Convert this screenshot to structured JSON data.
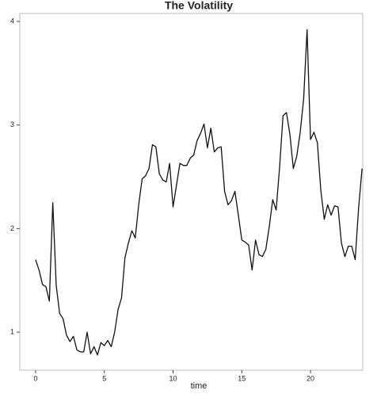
{
  "chart_data": {
    "type": "line",
    "title": "The Volatility",
    "xlabel": "time",
    "x": [
      0,
      0.25,
      0.5,
      0.75,
      1,
      1.25,
      1.5,
      1.75,
      2,
      2.25,
      2.5,
      2.75,
      3,
      3.25,
      3.5,
      3.75,
      4,
      4.25,
      4.5,
      4.75,
      5,
      5.25,
      5.5,
      5.75,
      6,
      6.25,
      6.5,
      6.75,
      7,
      7.25,
      7.5,
      7.75,
      8,
      8.25,
      8.5,
      8.75,
      9,
      9.25,
      9.5,
      9.75,
      10,
      10.25,
      10.5,
      10.75,
      11,
      11.25,
      11.5,
      11.75,
      12,
      12.25,
      12.5,
      12.75,
      13,
      13.25,
      13.5,
      13.75,
      14,
      14.25,
      14.5,
      14.75,
      15,
      15.25,
      15.5,
      15.75,
      16,
      16.25,
      16.5,
      16.75,
      17,
      17.25,
      17.5,
      17.75,
      18,
      18.25,
      18.5,
      18.75,
      19,
      19.25,
      19.5,
      19.75,
      20,
      20.25,
      20.5,
      20.75,
      21,
      21.25,
      21.5,
      21.75,
      22,
      22.25,
      22.5,
      22.75,
      23,
      23.25,
      23.5,
      23.75
    ],
    "series": [
      {
        "color": "#111111",
        "values": [
          1.7,
          1.6,
          1.46,
          1.44,
          1.3,
          2.25,
          1.45,
          1.18,
          1.13,
          0.97,
          0.91,
          0.96,
          0.83,
          0.81,
          0.81,
          1.0,
          0.79,
          0.86,
          0.78,
          0.9,
          0.87,
          0.92,
          0.86,
          1.0,
          1.22,
          1.33,
          1.72,
          1.86,
          1.98,
          1.91,
          2.23,
          2.48,
          2.51,
          2.58,
          2.81,
          2.79,
          2.53,
          2.47,
          2.45,
          2.63,
          2.21,
          2.42,
          2.63,
          2.61,
          2.61,
          2.68,
          2.71,
          2.85,
          2.92,
          3.01,
          2.78,
          2.97,
          2.74,
          2.78,
          2.79,
          2.36,
          2.23,
          2.27,
          2.36,
          2.13,
          1.89,
          1.87,
          1.84,
          1.6,
          1.89,
          1.75,
          1.73,
          1.8,
          2.02,
          2.28,
          2.18,
          2.59,
          3.09,
          3.12,
          2.91,
          2.58,
          2.7,
          2.93,
          3.25,
          3.92,
          2.86,
          2.93,
          2.83,
          2.37,
          2.09,
          2.23,
          2.13,
          2.22,
          2.21,
          1.86,
          1.73,
          1.83,
          1.83,
          1.7,
          2.2,
          2.58
        ]
      }
    ],
    "xlim": [
      -1.15,
      23.8
    ],
    "ylim": [
      0.633,
      4.077
    ],
    "xticks": [
      0,
      5,
      10,
      15,
      20
    ],
    "yticks": [
      1,
      2,
      3,
      4
    ]
  }
}
